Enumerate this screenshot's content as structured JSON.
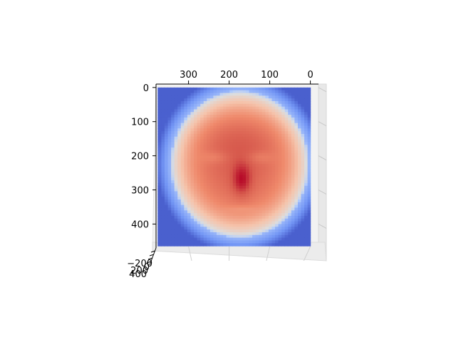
{
  "chart_data": {
    "type": "surface",
    "title": "",
    "colormap": "coolwarm",
    "colormap_stops": [
      "#3b4cc0",
      "#7396f5",
      "#b1cbfc",
      "#dddddd",
      "#f5c4ac",
      "#ef896b",
      "#d6584c",
      "#b40426"
    ],
    "view": "top-down",
    "x_axis": {
      "label": "",
      "ticks": [
        0,
        100,
        200,
        300
      ],
      "lim": [
        380,
        -20
      ],
      "inverted": true
    },
    "y_axis": {
      "label": "",
      "ticks": [
        0,
        100,
        200,
        300,
        400
      ],
      "lim": [
        -10,
        470
      ],
      "inverted": true
    },
    "z_axis": {
      "label": "",
      "ticks": [
        -200,
        0,
        200,
        400
      ],
      "tick_labels": [
        "−200",
        "0",
        "200",
        "400"
      ]
    },
    "surface": {
      "description_values": "depth map of a human face, depth highest at nose tip",
      "x_range": [
        0,
        370
      ],
      "y_range": [
        0,
        460
      ],
      "features": {
        "nose_tip": {
          "x": 170,
          "y": 270
        },
        "left_eye": {
          "x": 125,
          "y": 205
        },
        "right_eye": {
          "x": 235,
          "y": 205
        },
        "mouth": {
          "x": 170,
          "y": 355
        },
        "face_center": {
          "x": 175,
          "y": 225
        }
      }
    }
  }
}
